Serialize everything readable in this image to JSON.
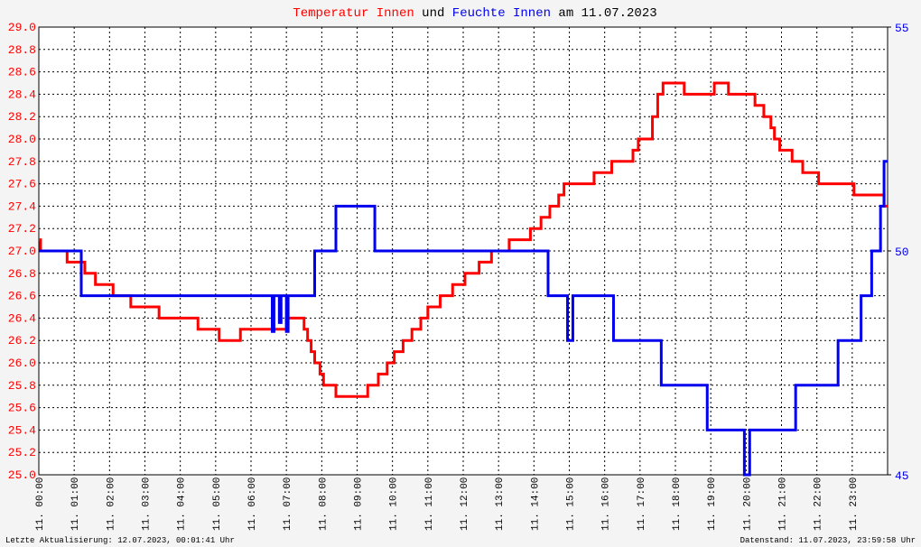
{
  "chart_data": {
    "type": "line",
    "title_connector": "und",
    "title_suffix": "am 11.07.2023",
    "footer_left": "Letzte Aktualisierung: 12.07.2023, 00:01:41 Uhr",
    "footer_right": "Datenstand: 11.07.2023, 23:59:58 Uhr",
    "grid": true,
    "xlim": [
      0,
      24
    ],
    "xticks": [
      {
        "value": 0,
        "label": "11. 00:00"
      },
      {
        "value": 1,
        "label": "11. 01:00"
      },
      {
        "value": 2,
        "label": "11. 02:00"
      },
      {
        "value": 3,
        "label": "11. 03:00"
      },
      {
        "value": 4,
        "label": "11. 04:00"
      },
      {
        "value": 5,
        "label": "11. 05:00"
      },
      {
        "value": 6,
        "label": "11. 06:00"
      },
      {
        "value": 7,
        "label": "11. 07:00"
      },
      {
        "value": 8,
        "label": "11. 08:00"
      },
      {
        "value": 9,
        "label": "11. 09:00"
      },
      {
        "value": 10,
        "label": "11. 10:00"
      },
      {
        "value": 11,
        "label": "11. 11:00"
      },
      {
        "value": 12,
        "label": "11. 12:00"
      },
      {
        "value": 13,
        "label": "11. 13:00"
      },
      {
        "value": 14,
        "label": "11. 14:00"
      },
      {
        "value": 15,
        "label": "11. 15:00"
      },
      {
        "value": 16,
        "label": "11. 16:00"
      },
      {
        "value": 17,
        "label": "11. 17:00"
      },
      {
        "value": 18,
        "label": "11. 18:00"
      },
      {
        "value": 19,
        "label": "11. 19:00"
      },
      {
        "value": 20,
        "label": "11. 20:00"
      },
      {
        "value": 21,
        "label": "11. 21:00"
      },
      {
        "value": 22,
        "label": "11. 22:00"
      },
      {
        "value": 23,
        "label": "11. 23:00"
      }
    ],
    "ylim": [
      25.0,
      29.0
    ],
    "yticks": [
      {
        "value": 25.0,
        "label": "25.0"
      },
      {
        "value": 25.2,
        "label": "25.2"
      },
      {
        "value": 25.4,
        "label": "25.4"
      },
      {
        "value": 25.6,
        "label": "25.6"
      },
      {
        "value": 25.8,
        "label": "25.8"
      },
      {
        "value": 26.0,
        "label": "26.0"
      },
      {
        "value": 26.2,
        "label": "26.2"
      },
      {
        "value": 26.4,
        "label": "26.4"
      },
      {
        "value": 26.6,
        "label": "26.6"
      },
      {
        "value": 26.8,
        "label": "26.8"
      },
      {
        "value": 27.0,
        "label": "27.0"
      },
      {
        "value": 27.2,
        "label": "27.2"
      },
      {
        "value": 27.4,
        "label": "27.4"
      },
      {
        "value": 27.6,
        "label": "27.6"
      },
      {
        "value": 27.8,
        "label": "27.8"
      },
      {
        "value": 28.0,
        "label": "28.0"
      },
      {
        "value": 28.2,
        "label": "28.2"
      },
      {
        "value": 28.4,
        "label": "28.4"
      },
      {
        "value": 28.6,
        "label": "28.6"
      },
      {
        "value": 28.8,
        "label": "28.8"
      },
      {
        "value": 29.0,
        "label": "29.0"
      }
    ],
    "y2lim": [
      45,
      55
    ],
    "y2ticks": [
      45,
      50,
      55
    ],
    "series": [
      {
        "name": "Temperatur Innen",
        "color": "#ff0000",
        "x": [
          0,
          0.05,
          0.05,
          0.8,
          0.8,
          1.3,
          1.3,
          1.6,
          1.6,
          2.1,
          2.1,
          2.6,
          2.6,
          3.4,
          3.4,
          4.5,
          4.5,
          5.1,
          5.1,
          5.7,
          5.7,
          7.0,
          7.0,
          7.5,
          7.5,
          7.6,
          7.6,
          7.7,
          7.7,
          7.8,
          7.8,
          7.95,
          7.95,
          8.05,
          8.05,
          8.4,
          8.4,
          9.3,
          9.3,
          9.6,
          9.6,
          9.85,
          9.85,
          10.05,
          10.05,
          10.3,
          10.3,
          10.55,
          10.55,
          10.8,
          10.8,
          11.0,
          11.0,
          11.35,
          11.35,
          11.7,
          11.7,
          12.05,
          12.05,
          12.45,
          12.45,
          12.8,
          12.8,
          13.3,
          13.3,
          13.9,
          13.9,
          14.2,
          14.2,
          14.45,
          14.45,
          14.7,
          14.7,
          14.85,
          14.85,
          15.7,
          15.7,
          16.2,
          16.2,
          16.8,
          16.8,
          16.95,
          16.95,
          17.35,
          17.35,
          17.5,
          17.5,
          17.65,
          17.65,
          18.25,
          18.25,
          19.1,
          19.1,
          19.5,
          19.5,
          20.25,
          20.25,
          20.5,
          20.5,
          20.7,
          20.7,
          20.8,
          20.8,
          20.95,
          20.95,
          21.3,
          21.3,
          21.6,
          21.6,
          22.05,
          22.05,
          23.05,
          23.05,
          23.9,
          23.9,
          24.0
        ],
        "values": [
          27.1,
          27.1,
          27.0,
          27.0,
          26.9,
          26.9,
          26.8,
          26.8,
          26.7,
          26.7,
          26.6,
          26.6,
          26.5,
          26.5,
          26.4,
          26.4,
          26.3,
          26.3,
          26.2,
          26.2,
          26.3,
          26.3,
          26.4,
          26.4,
          26.3,
          26.3,
          26.2,
          26.2,
          26.1,
          26.1,
          26.0,
          26.0,
          25.9,
          25.9,
          25.8,
          25.8,
          25.7,
          25.7,
          25.8,
          25.8,
          25.9,
          25.9,
          26.0,
          26.0,
          26.1,
          26.1,
          26.2,
          26.2,
          26.3,
          26.3,
          26.4,
          26.4,
          26.5,
          26.5,
          26.6,
          26.6,
          26.7,
          26.7,
          26.8,
          26.8,
          26.9,
          26.9,
          27.0,
          27.0,
          27.1,
          27.1,
          27.2,
          27.2,
          27.3,
          27.3,
          27.4,
          27.4,
          27.5,
          27.5,
          27.6,
          27.6,
          27.7,
          27.7,
          27.8,
          27.8,
          27.9,
          27.9,
          28.0,
          28.0,
          28.2,
          28.2,
          28.4,
          28.4,
          28.5,
          28.5,
          28.4,
          28.4,
          28.5,
          28.5,
          28.4,
          28.4,
          28.3,
          28.3,
          28.2,
          28.2,
          28.1,
          28.1,
          28.0,
          28.0,
          27.9,
          27.9,
          27.8,
          27.8,
          27.7,
          27.7,
          27.6,
          27.6,
          27.5,
          27.5,
          27.4,
          27.4
        ]
      },
      {
        "name": "Feuchte Innen",
        "color": "#0000ee",
        "axis": "y2",
        "x": [
          0,
          1.2,
          1.2,
          6.6,
          6.6,
          6.65,
          6.65,
          6.8,
          6.8,
          6.85,
          6.85,
          7.0,
          7.0,
          7.05,
          7.05,
          7.8,
          7.8,
          8.4,
          8.4,
          9.5,
          9.5,
          14.4,
          14.4,
          14.95,
          14.95,
          15.1,
          15.1,
          16.25,
          16.25,
          17.6,
          17.6,
          18.9,
          18.9,
          19.95,
          19.95,
          20.1,
          20.1,
          21.4,
          21.4,
          22.6,
          22.6,
          23.25,
          23.25,
          23.55,
          23.55,
          23.8,
          23.8,
          23.9,
          23.9,
          24.0
        ],
        "values": [
          50,
          50,
          49,
          49,
          48.2,
          48.2,
          49,
          49,
          48.4,
          48.4,
          49,
          49,
          48.2,
          48.2,
          49,
          49,
          50,
          50,
          51,
          51,
          50,
          50,
          49,
          49,
          48,
          48,
          49,
          49,
          48,
          48,
          47,
          47,
          46,
          46,
          45,
          45,
          46,
          46,
          47,
          47,
          48,
          48,
          49,
          49,
          50,
          50,
          51,
          51,
          52,
          52
        ]
      }
    ]
  }
}
